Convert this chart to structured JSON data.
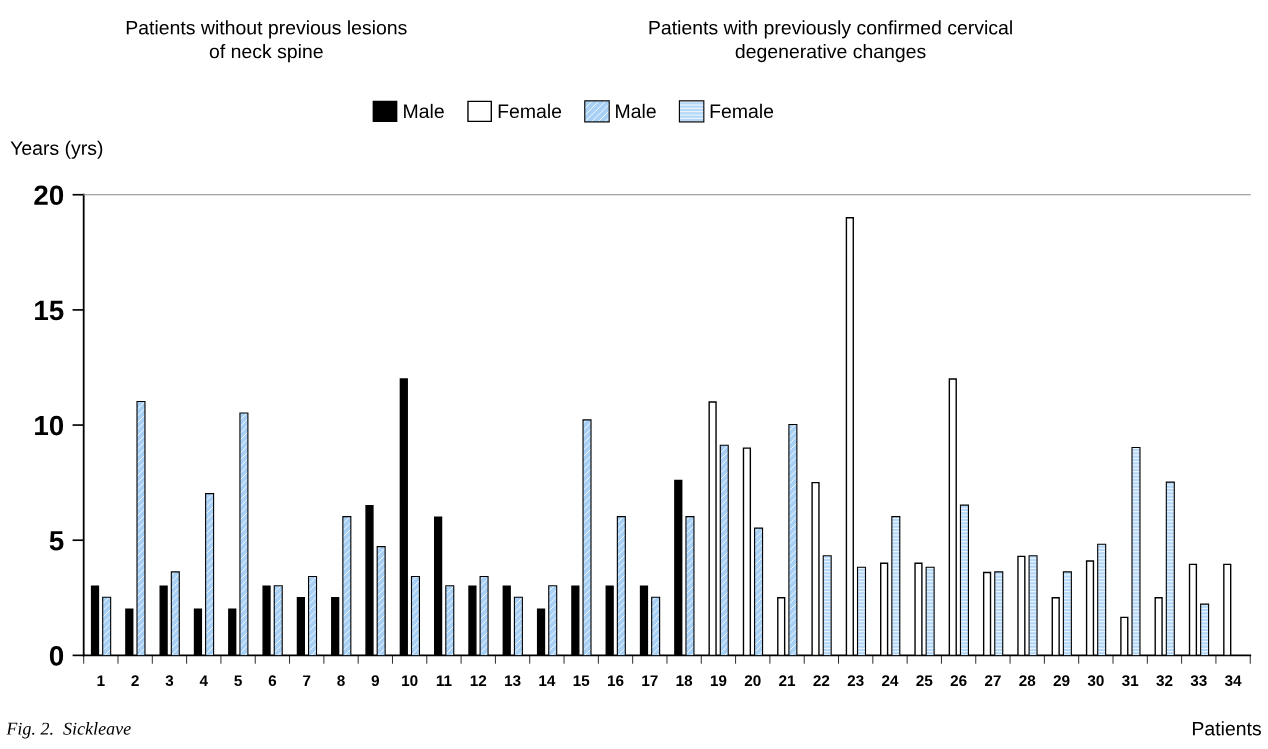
{
  "chart_data": {
    "type": "bar",
    "annotations": [
      "Patients without previous lesions\nof neck spine",
      "Patients with previously confirmed cervical\ndegenerative changes",
      "Fig. 2.  Sickleave"
    ],
    "xlabel": "Patients",
    "ylabel": "Years (yrs)",
    "categories": [
      "1",
      "2",
      "3",
      "4",
      "5",
      "6",
      "7",
      "8",
      "9",
      "10",
      "11",
      "12",
      "13",
      "14",
      "15",
      "16",
      "17",
      "18",
      "19",
      "20",
      "21",
      "22",
      "23",
      "24",
      "25",
      "26",
      "27",
      "28",
      "29",
      "30",
      "31",
      "32",
      "33",
      "34"
    ],
    "series": [
      {
        "name": "Male",
        "color": "#000000",
        "values": [
          3.0,
          2.0,
          3.0,
          2.0,
          2.0,
          3.0,
          2.5,
          2.5,
          6.5,
          12.0,
          6.0,
          3.0,
          3.0,
          2.0,
          3.0,
          3.0,
          3.0,
          7.6,
          null,
          null,
          null,
          null,
          null,
          null,
          null,
          null,
          null,
          null,
          null,
          null,
          null,
          null,
          null,
          null
        ]
      },
      {
        "name": "Female",
        "color": "#ffffff",
        "values": [
          null,
          null,
          null,
          null,
          null,
          null,
          null,
          null,
          null,
          null,
          null,
          null,
          null,
          null,
          null,
          null,
          null,
          null,
          11.0,
          9.0,
          2.5,
          7.5,
          19.0,
          4.0,
          4.0,
          12.0,
          3.6,
          4.3,
          2.5,
          4.1,
          1.65,
          2.5,
          3.95,
          3.95
        ]
      },
      {
        "name": "Male",
        "color": "#a8d0f5",
        "values": [
          2.5,
          11.0,
          3.6,
          7.0,
          10.5,
          3.0,
          3.4,
          6.0,
          4.7,
          3.4,
          3.0,
          3.4,
          2.5,
          3.0,
          10.2,
          6.0,
          2.5,
          6.0,
          9.1,
          5.5,
          10.0,
          null,
          null,
          null,
          null,
          null,
          null,
          null,
          null,
          null,
          null,
          null,
          null,
          null
        ]
      },
      {
        "name": "Female",
        "color": "#b5d8f8",
        "values": [
          null,
          null,
          null,
          null,
          null,
          null,
          null,
          null,
          null,
          null,
          null,
          null,
          null,
          null,
          null,
          null,
          null,
          null,
          null,
          null,
          null,
          4.3,
          3.8,
          6.0,
          3.8,
          6.5,
          3.6,
          4.3,
          3.6,
          4.8,
          9.0,
          7.5,
          2.2,
          null
        ]
      }
    ],
    "ylim": [
      0,
      20
    ],
    "yticks": [
      0,
      5,
      10,
      15,
      20
    ],
    "legend": "top"
  }
}
